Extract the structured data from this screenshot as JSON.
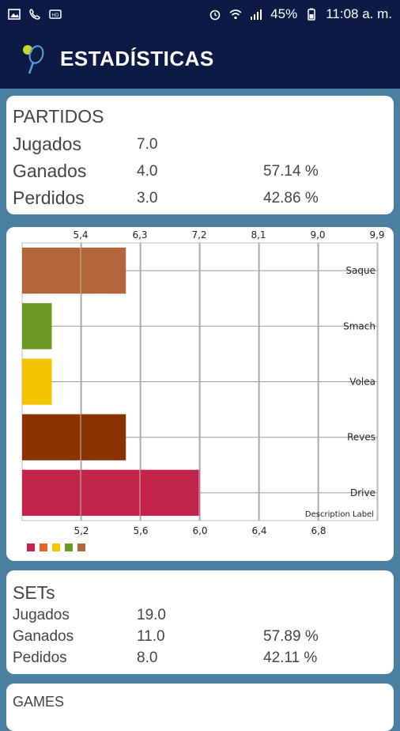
{
  "status_bar": {
    "battery": "45%",
    "time": "11:08 a. m.",
    "icons": [
      "image-icon",
      "missed-call-icon",
      "hd-icon",
      "alarm-icon",
      "wifi-icon",
      "signal-icon",
      "battery-icon"
    ]
  },
  "app_bar": {
    "title": "ESTADÍSTICAS",
    "logo_icon": "tennis-racket-icon"
  },
  "partidos": {
    "title": "PARTIDOS",
    "rows": [
      {
        "label": "Jugados",
        "value": "7.0",
        "percent": ""
      },
      {
        "label": "Ganados",
        "value": "4.0",
        "percent": "57.14 %"
      },
      {
        "label": "Perdidos",
        "value": "3.0",
        "percent": "42.86 %"
      }
    ]
  },
  "chart_data": {
    "type": "bar",
    "orientation": "horizontal",
    "categories": [
      "Saque",
      "Smach",
      "Volea",
      "Reves",
      "Drive"
    ],
    "values": [
      5.5,
      5.0,
      5.0,
      5.5,
      6.0
    ],
    "colors": [
      "#b5653a",
      "#6b9a24",
      "#f5c400",
      "#8a3300",
      "#c4244c"
    ],
    "top_ticks": [
      "5,4",
      "6,3",
      "7,2",
      "8,1",
      "9,0",
      "9,9"
    ],
    "bottom_ticks": [
      "5,2",
      "5,6",
      "6,0",
      "6,4",
      "6,8"
    ],
    "xlim": [
      4.8,
      7.2
    ],
    "description_label": "Description Label",
    "legend_colors": [
      "#c4244c",
      "#e4612a",
      "#f5c400",
      "#6b9a24",
      "#b5653a"
    ],
    "grid": true
  },
  "sets": {
    "title": "SETs",
    "rows": [
      {
        "label": "Jugados",
        "value": "19.0",
        "percent": ""
      },
      {
        "label": "Ganados",
        "value": "11.0",
        "percent": "57.89 %"
      },
      {
        "label": "Pedidos",
        "value": "8.0",
        "percent": "42.11 %"
      }
    ]
  },
  "games": {
    "title": "GAMES"
  }
}
